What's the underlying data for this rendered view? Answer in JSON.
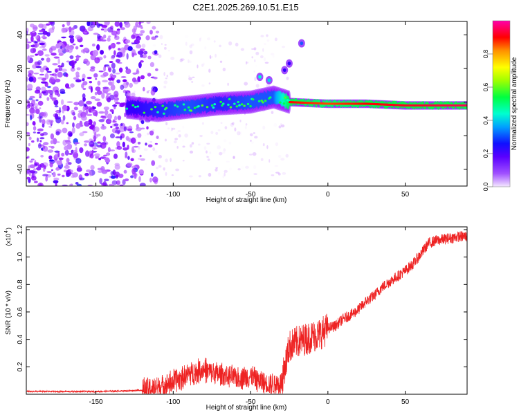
{
  "title": "C2E1.2025.269.10.51.E15",
  "chart_data": [
    {
      "type": "heatmap",
      "title": "C2E1.2025.269.10.51.E15",
      "xlabel": "Height of straight line (km)",
      "ylabel": "Frequency (Hz)",
      "xlim": [
        -195,
        90
      ],
      "ylim": [
        -50,
        48
      ],
      "xticks": [
        "-150",
        "-100",
        "-50",
        "0",
        "50"
      ],
      "xtick_values": [
        -150,
        -100,
        -50,
        0,
        50
      ],
      "yticks": [
        "-40",
        "-20",
        "0",
        "20",
        "40"
      ],
      "ytick_values": [
        -40,
        -20,
        0,
        20,
        40
      ],
      "colorbar": {
        "label": "Normalized spectral amplitude",
        "range": [
          0,
          1
        ],
        "ticks": [
          "0.0",
          "0.2",
          "0.4",
          "0.6",
          "0.8"
        ],
        "tick_values": [
          0.0,
          0.2,
          0.4,
          0.6,
          0.8
        ],
        "colormap": [
          "#f5e9ff",
          "#8a00ff",
          "#3300ff",
          "#00b0ff",
          "#00ffd0",
          "#00ff40",
          "#b0ff00",
          "#ffff00",
          "#ff9000",
          "#ff0000",
          "#ff00aa"
        ]
      },
      "features": {
        "noise_region_x": [
          -195,
          -120
        ],
        "signal_track": [
          {
            "x": -130,
            "freq": -3,
            "amp": 0.35
          },
          {
            "x": -110,
            "freq": -5,
            "amp": 0.4
          },
          {
            "x": -90,
            "freq": -3,
            "amp": 0.45
          },
          {
            "x": -70,
            "freq": -1,
            "amp": 0.4
          },
          {
            "x": -50,
            "freq": 0,
            "amp": 0.45
          },
          {
            "x": -35,
            "freq": 3,
            "amp": 0.45
          },
          {
            "x": -25,
            "freq": 0,
            "amp": 0.9
          },
          {
            "x": 0,
            "freq": -1,
            "amp": 0.85
          },
          {
            "x": 25,
            "freq": -1,
            "amp": 0.9
          },
          {
            "x": 50,
            "freq": -2,
            "amp": 0.92
          },
          {
            "x": 90,
            "freq": -2,
            "amp": 0.95
          }
        ],
        "secondary_blobs": [
          {
            "x": -44,
            "freq": 15,
            "amp": 0.4
          },
          {
            "x": -38,
            "freq": 13,
            "amp": 0.35
          },
          {
            "x": -28,
            "freq": 19,
            "amp": 0.2
          },
          {
            "x": -25,
            "freq": 23,
            "amp": 0.2
          },
          {
            "x": -17,
            "freq": 35,
            "amp": 0.25
          }
        ]
      }
    },
    {
      "type": "line",
      "xlabel": "Height of straight line (km)",
      "ylabel": "SNR (10 * v/v)",
      "scale_label": "(x10",
      "scale_exponent": "4",
      "xlim": [
        -195,
        90
      ],
      "ylim": [
        0.0,
        1.22
      ],
      "xticks": [
        "-150",
        "-100",
        "-50",
        "0",
        "50"
      ],
      "xtick_values": [
        -150,
        -100,
        -50,
        0,
        50
      ],
      "yticks": [
        "0.2",
        "0.4",
        "0.6",
        "0.8",
        "1.0",
        "1.2"
      ],
      "ytick_values": [
        0.2,
        0.4,
        0.6,
        0.8,
        1.0,
        1.2
      ],
      "series": [
        {
          "name": "SNR",
          "color": "#ee2222",
          "x": [
            -195,
            -170,
            -150,
            -130,
            -120,
            -110,
            -100,
            -90,
            -80,
            -70,
            -60,
            -50,
            -45,
            -40,
            -35,
            -30,
            -25,
            -20,
            -15,
            -10,
            -5,
            0,
            5,
            10,
            15,
            20,
            25,
            30,
            35,
            40,
            45,
            50,
            55,
            60,
            65,
            70,
            75,
            80,
            85,
            90
          ],
          "values": [
            0.02,
            0.02,
            0.02,
            0.025,
            0.03,
            0.05,
            0.09,
            0.15,
            0.18,
            0.14,
            0.12,
            0.13,
            0.1,
            0.08,
            0.07,
            0.08,
            0.35,
            0.38,
            0.4,
            0.42,
            0.44,
            0.48,
            0.5,
            0.55,
            0.58,
            0.62,
            0.68,
            0.72,
            0.78,
            0.82,
            0.86,
            0.9,
            0.95,
            1.02,
            1.1,
            1.12,
            1.13,
            1.14,
            1.15,
            1.15
          ]
        }
      ]
    }
  ]
}
